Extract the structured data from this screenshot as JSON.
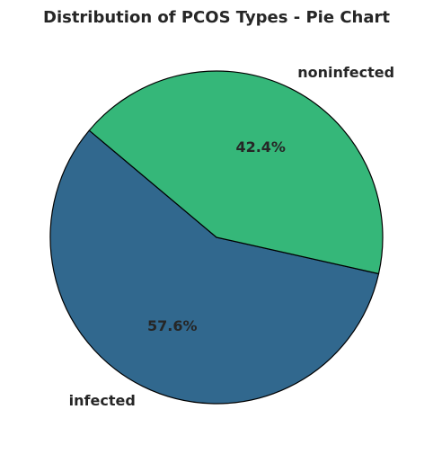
{
  "chart_data": {
    "type": "pie",
    "title": "Distribution of PCOS Types - Pie Chart",
    "categories": [
      "infected",
      "noninfected"
    ],
    "values": [
      57.6,
      42.4
    ],
    "percent_labels": [
      "57.6%",
      "42.4%"
    ],
    "colors": [
      "#31688e",
      "#35b779"
    ],
    "edge_color": "#000000",
    "start_angle_deg": 140,
    "direction": "counterclockwise"
  }
}
